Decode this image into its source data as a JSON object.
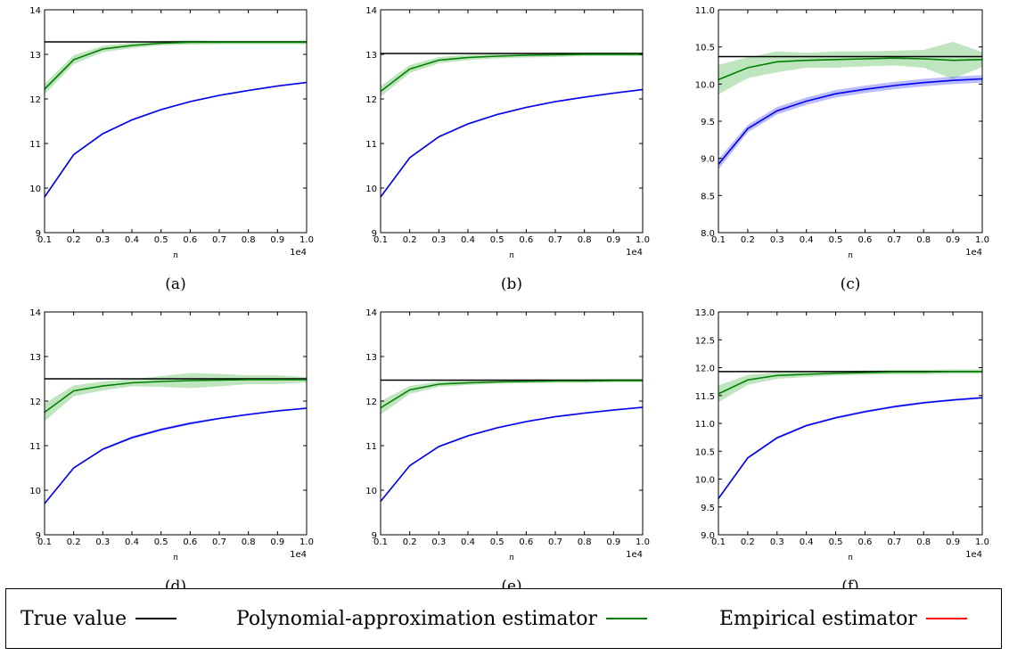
{
  "legend": {
    "true_label": "True value",
    "poly_label": "Polynomial-approximation estimator",
    "emp_label": "Empirical estimator",
    "true_color": "#000000",
    "poly_color": "#008000",
    "emp_color": "#ff0000"
  },
  "chart_data": [
    {
      "type": "line",
      "caption": "(a)",
      "xlabel": "n",
      "x_multiplier": "1e4",
      "xlim": [
        0.1,
        1.0
      ],
      "ylim": [
        9,
        14
      ],
      "x": [
        0.1,
        0.2,
        0.3,
        0.4,
        0.5,
        0.6,
        0.7,
        0.8,
        0.9,
        1.0
      ],
      "xticks": [
        "0.1",
        "0.2",
        "0.3",
        "0.4",
        "0.5",
        "0.6",
        "0.7",
        "0.8",
        "0.9",
        "1.0"
      ],
      "yticks": [
        "9",
        "10",
        "11",
        "12",
        "13",
        "14"
      ],
      "true_value": 13.28,
      "poly": [
        12.22,
        12.88,
        13.12,
        13.2,
        13.25,
        13.27,
        13.27,
        13.27,
        13.27,
        13.27
      ],
      "poly_band": [
        0.12,
        0.1,
        0.07,
        0.06,
        0.05,
        0.05,
        0.04,
        0.04,
        0.04,
        0.04
      ],
      "empirical": [
        9.8,
        10.75,
        11.22,
        11.53,
        11.76,
        11.94,
        12.08,
        12.19,
        12.29,
        12.37
      ],
      "emp_band": [
        0.02,
        0.02,
        0.02,
        0.02,
        0.02,
        0.02,
        0.02,
        0.02,
        0.02,
        0.02
      ]
    },
    {
      "type": "line",
      "caption": "(b)",
      "xlabel": "n",
      "x_multiplier": "1e4",
      "xlim": [
        0.1,
        1.0
      ],
      "ylim": [
        9,
        14
      ],
      "x": [
        0.1,
        0.2,
        0.3,
        0.4,
        0.5,
        0.6,
        0.7,
        0.8,
        0.9,
        1.0
      ],
      "xticks": [
        "0.1",
        "0.2",
        "0.3",
        "0.4",
        "0.5",
        "0.6",
        "0.7",
        "0.8",
        "0.9",
        "1.0"
      ],
      "yticks": [
        "9",
        "10",
        "11",
        "12",
        "13",
        "14"
      ],
      "true_value": 13.02,
      "poly": [
        12.17,
        12.67,
        12.87,
        12.93,
        12.96,
        12.98,
        12.99,
        13.0,
        13.0,
        13.0
      ],
      "poly_band": [
        0.12,
        0.09,
        0.07,
        0.06,
        0.05,
        0.05,
        0.05,
        0.04,
        0.04,
        0.04
      ],
      "empirical": [
        9.8,
        10.68,
        11.15,
        11.44,
        11.65,
        11.81,
        11.94,
        12.04,
        12.13,
        12.21
      ],
      "emp_band": [
        0.02,
        0.02,
        0.02,
        0.02,
        0.02,
        0.02,
        0.02,
        0.02,
        0.02,
        0.02
      ]
    },
    {
      "type": "line",
      "caption": "(c)",
      "xlabel": "n",
      "x_multiplier": "1e4",
      "xlim": [
        0.1,
        1.0
      ],
      "ylim": [
        8.0,
        11.0
      ],
      "x": [
        0.1,
        0.2,
        0.3,
        0.4,
        0.5,
        0.6,
        0.7,
        0.8,
        0.9,
        1.0
      ],
      "xticks": [
        "0.1",
        "0.2",
        "0.3",
        "0.4",
        "0.5",
        "0.6",
        "0.7",
        "0.8",
        "0.9",
        "1.0"
      ],
      "yticks": [
        "8.0",
        "8.5",
        "9.0",
        "9.5",
        "10.0",
        "10.5",
        "11.0"
      ],
      "true_value": 10.37,
      "poly": [
        10.06,
        10.22,
        10.3,
        10.32,
        10.33,
        10.34,
        10.35,
        10.34,
        10.32,
        10.33
      ],
      "poly_band": [
        0.2,
        0.14,
        0.14,
        0.1,
        0.11,
        0.1,
        0.1,
        0.12,
        0.25,
        0.1
      ],
      "empirical": [
        8.92,
        9.4,
        9.64,
        9.77,
        9.87,
        9.93,
        9.98,
        10.02,
        10.05,
        10.07
      ],
      "emp_band": [
        0.07,
        0.05,
        0.05,
        0.05,
        0.05,
        0.05,
        0.05,
        0.05,
        0.05,
        0.05
      ]
    },
    {
      "type": "line",
      "caption": "(d)",
      "xlabel": "n",
      "x_multiplier": "1e4",
      "xlim": [
        0.1,
        1.0
      ],
      "ylim": [
        9,
        14
      ],
      "x": [
        0.1,
        0.2,
        0.3,
        0.4,
        0.5,
        0.6,
        0.7,
        0.8,
        0.9,
        1.0
      ],
      "xticks": [
        "0.1",
        "0.2",
        "0.3",
        "0.4",
        "0.5",
        "0.6",
        "0.7",
        "0.8",
        "0.9",
        "1.0"
      ],
      "yticks": [
        "9",
        "10",
        "11",
        "12",
        "13",
        "14"
      ],
      "true_value": 12.5,
      "poly": [
        11.75,
        12.23,
        12.34,
        12.41,
        12.44,
        12.46,
        12.47,
        12.48,
        12.48,
        12.48
      ],
      "poly_band": [
        0.2,
        0.12,
        0.1,
        0.08,
        0.12,
        0.17,
        0.14,
        0.1,
        0.1,
        0.06
      ],
      "empirical": [
        9.7,
        10.5,
        10.92,
        11.18,
        11.36,
        11.5,
        11.61,
        11.7,
        11.78,
        11.84
      ],
      "emp_band": [
        0.02,
        0.02,
        0.02,
        0.03,
        0.03,
        0.03,
        0.02,
        0.02,
        0.02,
        0.02
      ]
    },
    {
      "type": "line",
      "caption": "(e)",
      "xlabel": "n",
      "x_multiplier": "1e4",
      "xlim": [
        0.1,
        1.0
      ],
      "ylim": [
        9,
        14
      ],
      "x": [
        0.1,
        0.2,
        0.3,
        0.4,
        0.5,
        0.6,
        0.7,
        0.8,
        0.9,
        1.0
      ],
      "xticks": [
        "0.1",
        "0.2",
        "0.3",
        "0.4",
        "0.5",
        "0.6",
        "0.7",
        "0.8",
        "0.9",
        "1.0"
      ],
      "yticks": [
        "9",
        "10",
        "11",
        "12",
        "13",
        "14"
      ],
      "true_value": 12.47,
      "poly": [
        11.85,
        12.25,
        12.38,
        12.41,
        12.43,
        12.44,
        12.45,
        12.45,
        12.46,
        12.46
      ],
      "poly_band": [
        0.15,
        0.09,
        0.06,
        0.05,
        0.04,
        0.04,
        0.04,
        0.04,
        0.04,
        0.04
      ],
      "empirical": [
        9.75,
        10.55,
        10.98,
        11.22,
        11.4,
        11.54,
        11.65,
        11.73,
        11.8,
        11.86
      ],
      "emp_band": [
        0.02,
        0.02,
        0.02,
        0.02,
        0.02,
        0.02,
        0.02,
        0.02,
        0.02,
        0.02
      ]
    },
    {
      "type": "line",
      "caption": "(f)",
      "xlabel": "n",
      "x_multiplier": "1e4",
      "xlim": [
        0.1,
        1.0
      ],
      "ylim": [
        9.0,
        13.0
      ],
      "x": [
        0.1,
        0.2,
        0.3,
        0.4,
        0.5,
        0.6,
        0.7,
        0.8,
        0.9,
        1.0
      ],
      "xticks": [
        "0.1",
        "0.2",
        "0.3",
        "0.4",
        "0.5",
        "0.6",
        "0.7",
        "0.8",
        "0.9",
        "1.0"
      ],
      "yticks": [
        "9.0",
        "9.5",
        "10.0",
        "10.5",
        "11.0",
        "11.5",
        "12.0",
        "12.5",
        "13.0"
      ],
      "true_value": 11.93,
      "poly": [
        11.53,
        11.78,
        11.86,
        11.88,
        11.9,
        11.91,
        11.92,
        11.92,
        11.93,
        11.93
      ],
      "poly_band": [
        0.15,
        0.09,
        0.06,
        0.05,
        0.04,
        0.04,
        0.04,
        0.04,
        0.04,
        0.04
      ],
      "empirical": [
        9.65,
        10.38,
        10.74,
        10.96,
        11.1,
        11.21,
        11.3,
        11.37,
        11.42,
        11.46
      ],
      "emp_band": [
        0.02,
        0.02,
        0.02,
        0.02,
        0.02,
        0.02,
        0.02,
        0.02,
        0.02,
        0.02
      ]
    }
  ]
}
